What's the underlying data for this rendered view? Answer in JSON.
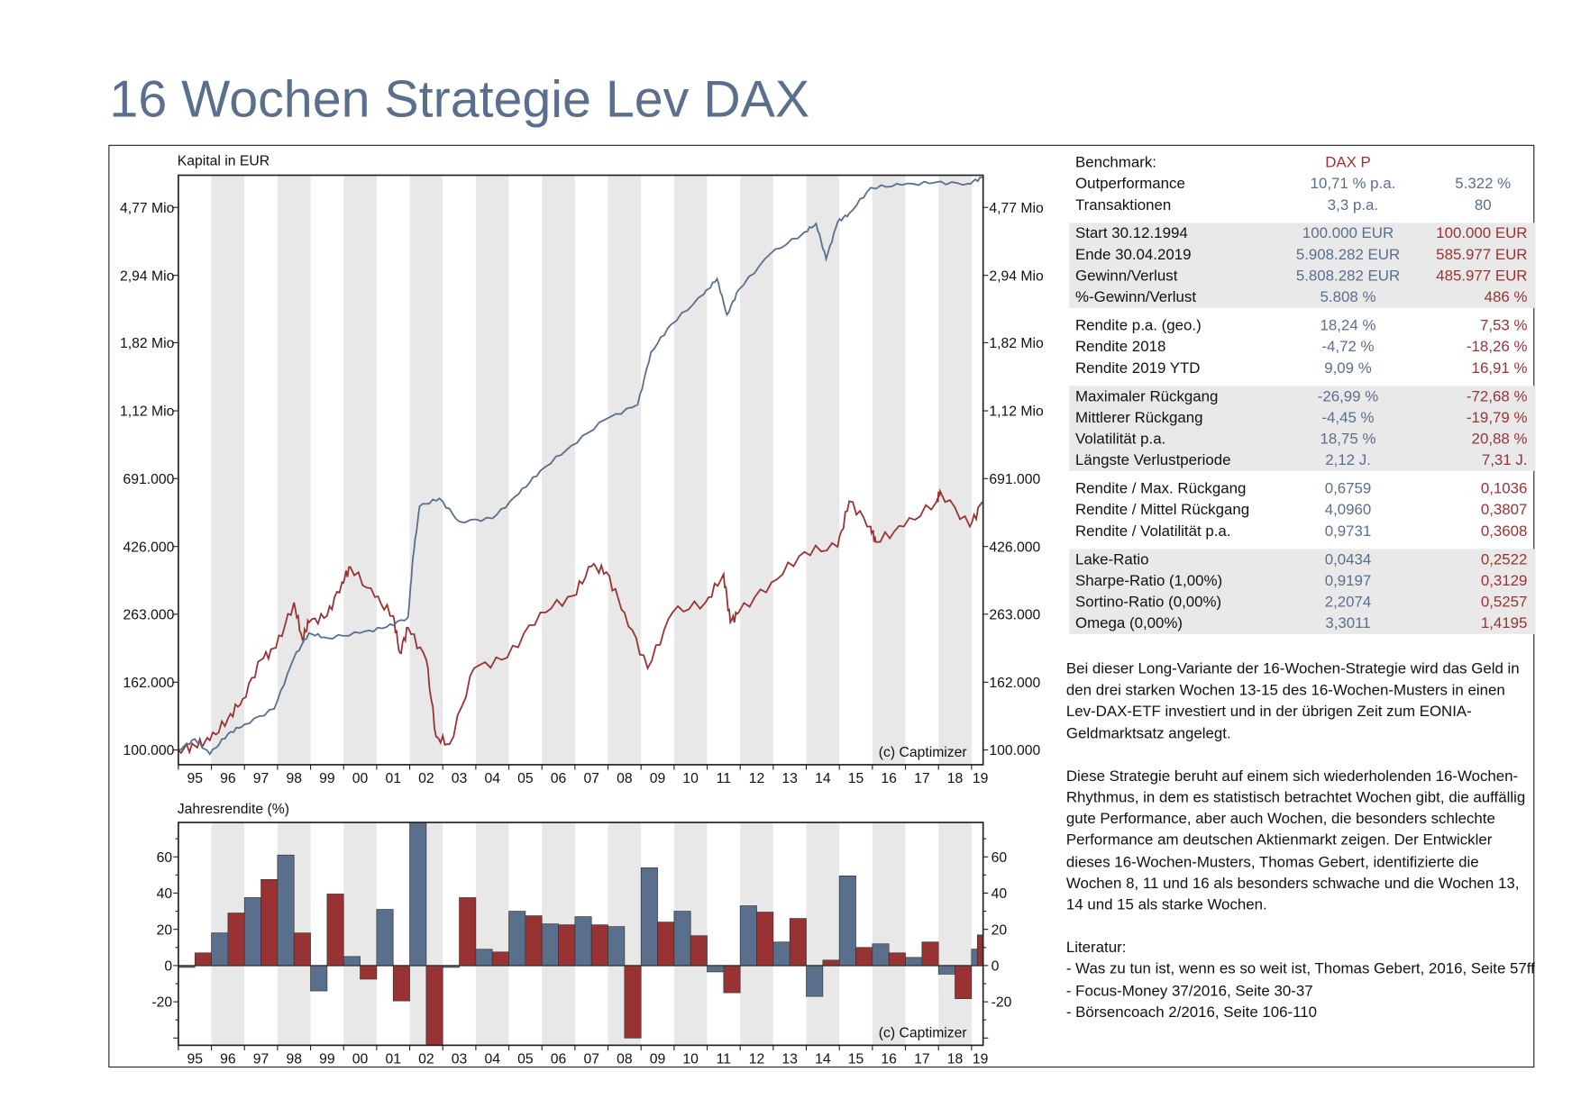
{
  "title": "16 Wochen Strategie Lev DAX",
  "colors": {
    "strategy": "#5a6f8c",
    "benchmark": "#993333",
    "band": "#e8e8e8"
  },
  "chart_data": [
    {
      "type": "line",
      "title": "Kapital in EUR",
      "yscale": "log",
      "ylim": [
        90000,
        6000000
      ],
      "xlim": [
        1995.0,
        2019.35
      ],
      "ytick_values": [
        100000,
        162000,
        263000,
        426000,
        691000,
        1120000,
        1820000,
        2940000,
        4770000
      ],
      "ytick_labels": [
        "100.000",
        "162.000",
        "263.000",
        "426.000",
        "691.000",
        "1,12 Mio",
        "1,82 Mio",
        "2,94 Mio",
        "4,77 Mio"
      ],
      "xtick_labels": [
        "95",
        "96",
        "97",
        "98",
        "99",
        "00",
        "01",
        "02",
        "03",
        "04",
        "05",
        "06",
        "07",
        "08",
        "09",
        "10",
        "11",
        "12",
        "13",
        "14",
        "15",
        "16",
        "17",
        "18",
        "19"
      ],
      "annotation": "(c) Captimizer",
      "series": [
        {
          "name": "16 Wochen Strategie Lev DAX",
          "x": [
            1995.0,
            1995.5,
            1995.95,
            1996.5,
            1997.0,
            1997.9,
            1998.5,
            1998.95,
            1999.5,
            2000.5,
            2001.3,
            2001.95,
            2002.1,
            2002.3,
            2002.9,
            2003.5,
            2004.5,
            2005.3,
            2005.95,
            2006.9,
            2007.9,
            2008.9,
            2009.3,
            2009.9,
            2010.9,
            2011.3,
            2011.6,
            2011.95,
            2012.9,
            2013.9,
            2014.3,
            2014.6,
            2014.95,
            2015.3,
            2015.95,
            2016.9,
            2017.9,
            2018.9,
            2019.33
          ],
          "y": [
            100000,
            108000,
            97000,
            112000,
            120000,
            134000,
            193000,
            230000,
            222000,
            230000,
            240000,
            257000,
            396000,
            567000,
            600000,
            509000,
            520000,
            620000,
            730000,
            875000,
            1050000,
            1170000,
            1700000,
            2070000,
            2570000,
            2870000,
            2220000,
            2650000,
            3420000,
            3960000,
            4250000,
            3300000,
            4300000,
            4570000,
            5490000,
            5600000,
            5700000,
            5650000,
            5908282
          ]
        },
        {
          "name": "DAX P",
          "x": [
            1995.0,
            1995.5,
            1995.95,
            1996.5,
            1996.95,
            1997.5,
            1997.95,
            1998.5,
            1998.75,
            1998.95,
            1999.5,
            1999.95,
            2000.2,
            2000.95,
            2001.5,
            2001.7,
            2001.95,
            2002.5,
            2002.8,
            2003.2,
            2003.95,
            2004.95,
            2005.95,
            2006.95,
            2007.5,
            2007.95,
            2008.5,
            2009.2,
            2009.95,
            2010.95,
            2011.5,
            2011.7,
            2011.95,
            2012.95,
            2013.95,
            2014.95,
            2015.3,
            2015.95,
            2016.1,
            2016.95,
            2017.95,
            2018.05,
            2018.95,
            2019.33
          ],
          "y": [
            100000,
            103000,
            107000,
            125000,
            144000,
            190000,
            207000,
            286000,
            220000,
            248000,
            260000,
            330000,
            368000,
            297000,
            260000,
            200000,
            239000,
            190000,
            110000,
            104000,
            179000,
            193000,
            266000,
            300000,
            370000,
            355000,
            266000,
            179000,
            266000,
            286000,
            350000,
            248000,
            266000,
            330000,
            410000,
            425000,
            588000,
            491000,
            440000,
            491000,
            588000,
            632000,
            491000,
            585977
          ]
        }
      ]
    },
    {
      "type": "bar",
      "title": "Jahresrendite (%)",
      "ylim": [
        -44,
        79
      ],
      "ytick_values": [
        60,
        40,
        20,
        0,
        -20
      ],
      "ytick_labels": [
        "60",
        "40",
        "20",
        "0",
        "-20"
      ],
      "categories": [
        "95",
        "96",
        "97",
        "98",
        "99",
        "00",
        "01",
        "02",
        "03",
        "04",
        "05",
        "06",
        "07",
        "08",
        "09",
        "10",
        "11",
        "12",
        "13",
        "14",
        "15",
        "16",
        "17",
        "18",
        "19"
      ],
      "annotation": "(c) Captimizer",
      "series": [
        {
          "name": "16 Wochen Strategie Lev DAX",
          "values": [
            -1,
            18,
            37.5,
            61,
            -14,
            5,
            31,
            80,
            -1,
            9,
            30,
            23,
            27,
            21.5,
            54,
            30,
            -3.5,
            33,
            13,
            -17,
            49.5,
            12,
            4.5,
            -4.72,
            9.09
          ]
        },
        {
          "name": "DAX P",
          "values": [
            7,
            29,
            47.5,
            18,
            39.5,
            -7.5,
            -19.5,
            -44,
            37.5,
            7.5,
            27.5,
            22.5,
            22.5,
            -40,
            24,
            16.5,
            -15,
            29.5,
            26,
            3,
            10,
            7,
            13,
            -18.26,
            16.91
          ]
        }
      ]
    }
  ],
  "stats": {
    "groups": [
      {
        "shade": false,
        "rows": [
          {
            "label": "Benchmark:",
            "v1": "",
            "v2": "",
            "bench": "DAX P"
          },
          {
            "label": "Outperformance",
            "v1": "10,71 % p.a.",
            "v2": "5.322 %",
            "blue2": true
          },
          {
            "label": "Transaktionen",
            "v1": "3,3 p.a.",
            "v2": "80",
            "blue2": true
          }
        ]
      },
      {
        "shade": true,
        "rows": [
          {
            "label": "Start  30.12.1994",
            "v1": "100.000 EUR",
            "v2": "100.000 EUR"
          },
          {
            "label": "Ende 30.04.2019",
            "v1": "5.908.282 EUR",
            "v2": "585.977 EUR"
          },
          {
            "label": "Gewinn/Verlust",
            "v1": "5.808.282 EUR",
            "v2": "485.977 EUR"
          },
          {
            "label": "%-Gewinn/Verlust",
            "v1": "5.808 %",
            "v2": "486 %"
          }
        ]
      },
      {
        "shade": false,
        "rows": [
          {
            "label": "Rendite p.a. (geo.)",
            "v1": "18,24 %",
            "v2": "7,53 %"
          },
          {
            "label": "Rendite 2018",
            "v1": "-4,72 %",
            "v2": "-18,26 %"
          },
          {
            "label": "Rendite 2019 YTD",
            "v1": "9,09 %",
            "v2": "16,91 %"
          }
        ]
      },
      {
        "shade": true,
        "rows": [
          {
            "label": "Maximaler Rückgang",
            "v1": "-26,99 %",
            "v2": "-72,68 %"
          },
          {
            "label": "Mittlerer Rückgang",
            "v1": "-4,45 %",
            "v2": "-19,79 %"
          },
          {
            "label": "Volatilität p.a.",
            "v1": "18,75 %",
            "v2": "20,88 %"
          },
          {
            "label": "Längste Verlustperiode",
            "v1": "2,12 J.",
            "v2": "7,31 J."
          }
        ]
      },
      {
        "shade": false,
        "rows": [
          {
            "label": "Rendite / Max. Rückgang",
            "v1": "0,6759",
            "v2": "0,1036"
          },
          {
            "label": "Rendite / Mittel Rückgang",
            "v1": "4,0960",
            "v2": "0,3807"
          },
          {
            "label": "Rendite / Volatilität p.a.",
            "v1": "0,9731",
            "v2": "0,3608"
          }
        ]
      },
      {
        "shade": true,
        "rows": [
          {
            "label": "Lake-Ratio",
            "v1": "0,0434",
            "v2": "0,2522"
          },
          {
            "label": "Sharpe-Ratio (1,00%)",
            "v1": "0,9197",
            "v2": "0,3129"
          },
          {
            "label": "Sortino-Ratio (0,00%)",
            "v1": "2,2074",
            "v2": "0,5257"
          },
          {
            "label": "Omega (0,00%)",
            "v1": "3,3011",
            "v2": "1,4195"
          }
        ]
      }
    ]
  },
  "description": {
    "p1": "Bei dieser Long-Variante der 16-Wochen-Strategie wird das Geld in den drei starken Wochen 13-15 des 16-Wochen-Musters in einen Lev-DAX-ETF investiert und in der übrigen Zeit zum EONIA-Geldmarktsatz angelegt.",
    "p2": "Diese Strategie beruht auf einem sich wiederholenden 16-Wochen-Rhythmus, in dem es statistisch betrachtet Wochen gibt, die auffällig gute Performance, aber auch Wochen, die besonders schlechte Performance am deutschen Aktienmarkt zeigen. Der Entwickler dieses 16-Wochen-Musters, Thomas Gebert, identifizierte die Wochen 8, 11 und 16 als besonders schwache und die Wochen 13, 14 und 15 als starke Wochen.",
    "literature_heading": "Literatur:",
    "literature": [
      "- Was zu tun ist, wenn es so weit ist, Thomas Gebert, 2016, Seite 57ff",
      "- Focus-Money 37/2016, Seite 30-37",
      "- Börsencoach 2/2016, Seite 106-110"
    ]
  }
}
